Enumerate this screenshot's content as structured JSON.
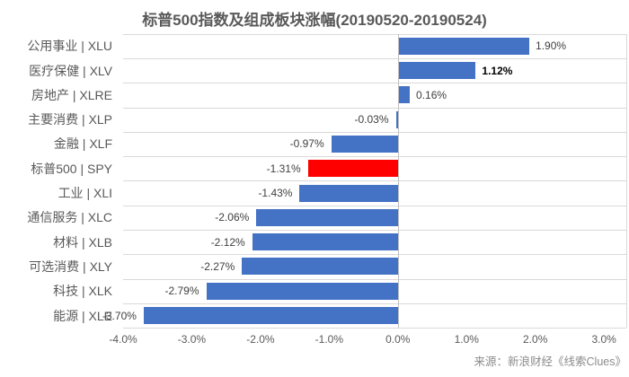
{
  "chart_data": {
    "type": "bar",
    "orientation": "horizontal",
    "title": "标普500指数及组成板块涨幅(20190520-20190524)",
    "source": "来源：新浪财经《线索Clues》",
    "categories": [
      "公用事业 | XLU",
      "医疗保健 | XLV",
      "房地产 | XLRE",
      "主要消费 | XLP",
      "金融 | XLF",
      "标普500 | SPY",
      "工业 | XLI",
      "通信服务 | XLC",
      "材料 | XLB",
      "可选消费 | XLY",
      "科技 | XLK",
      "能源 | XLE"
    ],
    "values": [
      1.9,
      1.12,
      0.16,
      -0.03,
      -0.97,
      -1.31,
      -1.43,
      -2.06,
      -2.12,
      -2.27,
      -2.79,
      -3.7
    ],
    "value_labels": [
      "1.90%",
      "1.12%",
      "0.16%",
      "-0.03%",
      "-0.97%",
      "-1.31%",
      "-1.43%",
      "-2.06%",
      "-2.12%",
      "-2.27%",
      "-2.79%",
      "-3.70%"
    ],
    "highlight_index": 5,
    "bold_label_index": 1,
    "xlim": [
      -4.0,
      3.325
    ],
    "x_tick_values": [
      -4.0,
      -3.0,
      -2.0,
      -1.0,
      0.0,
      1.0,
      2.0,
      3.0
    ],
    "x_tick_labels": [
      "-4.0%",
      "-3.0%",
      "-2.0%",
      "-1.0%",
      "0.0%",
      "1.0%",
      "2.0%",
      "3.0%"
    ],
    "grid": "horizontal-row-separators",
    "legend": "none",
    "colors": {
      "bar": "#4472c4",
      "highlight_bar": "#ff0000",
      "gridline": "#d9d9d9",
      "zero_axis": "#bfbfbf",
      "value_label": "#404040",
      "bold_value_label": "#000000",
      "category_label": "#595959",
      "tick_label": "#595959",
      "title": "#595959",
      "source": "#8c8c8c"
    }
  }
}
